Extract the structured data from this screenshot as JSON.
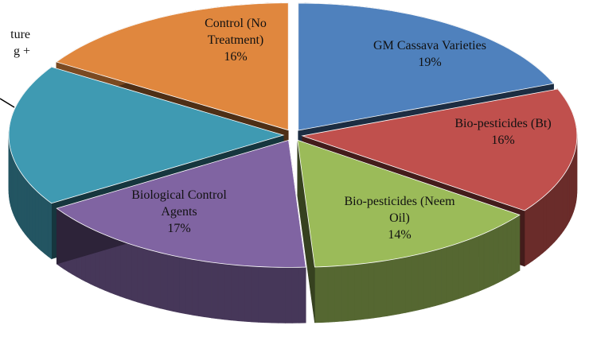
{
  "chart_data": {
    "type": "pie",
    "style": "3d-exploded",
    "slices": [
      {
        "label_lines": [
          "GM Cassava Varieties"
        ],
        "percent_label": "19%",
        "value": 19,
        "color": "#4f81bd"
      },
      {
        "label_lines": [
          "Bio-pesticides (Bt)"
        ],
        "percent_label": "16%",
        "value": 16,
        "color": "#c0504d"
      },
      {
        "label_lines": [
          "Bio-pesticides (Neem",
          "Oil)"
        ],
        "percent_label": "14%",
        "value": 14,
        "color": "#9bbb59"
      },
      {
        "label_lines": [
          "Biological Control",
          "Agents"
        ],
        "percent_label": "17%",
        "value": 17,
        "color": "#8064a2"
      },
      {
        "label_lines": [
          "ture",
          "g +"
        ],
        "percent_label": "",
        "value": 18,
        "color": "#3f9ab2"
      },
      {
        "label_lines": [
          "Control (No",
          "Treatment)"
        ],
        "percent_label": "16%",
        "value": 16,
        "color": "#e0873e"
      }
    ]
  }
}
